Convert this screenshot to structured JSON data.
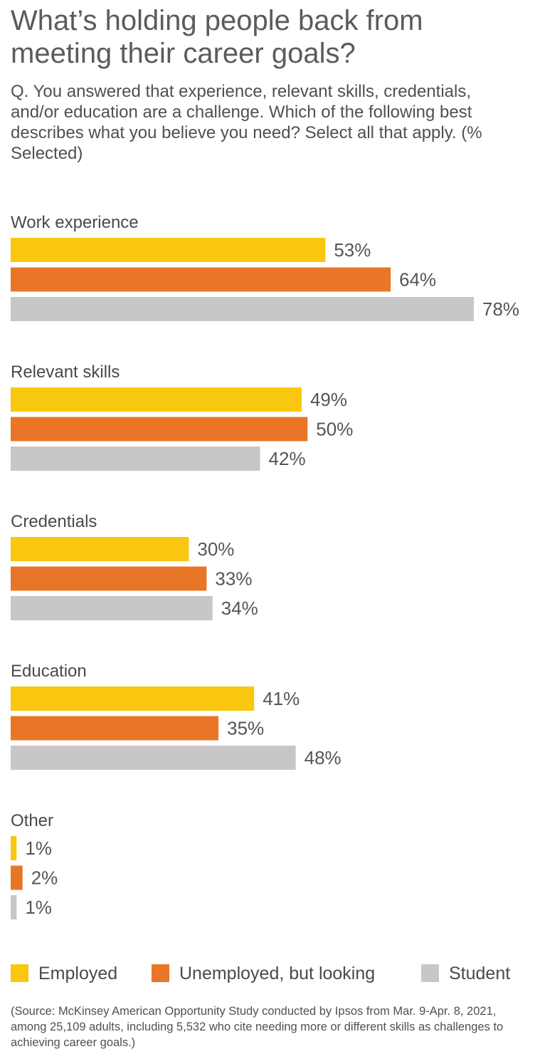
{
  "title": "What’s holding people back from meeting their career goals?",
  "subtitle": "Q. You answered that experience, relevant skills, credentials, and/or education are a challenge. Which of the following best describes what you believe you need? Select all that apply. (% Selected)",
  "source": "(Source: McKinsey American Opportunity Study conducted by Ipsos from Mar. 9-Apr. 8, 2021, among 25,109 adults, including 5,532 who cite needing more or different skills as challenges to achieving career goals.)",
  "colors": {
    "employed": "#f9c70f",
    "unemployed": "#e97626",
    "student": "#c9c6c6"
  },
  "chart_data": {
    "type": "bar",
    "orientation": "horizontal",
    "unit": "%",
    "categories": [
      "Work experience",
      "Relevant skills",
      "Credentials",
      "Education",
      "Other"
    ],
    "series": [
      {
        "name": "Employed",
        "color_key": "employed",
        "values": [
          53,
          49,
          30,
          41,
          1
        ]
      },
      {
        "name": "Unemployed, but looking",
        "color_key": "unemployed",
        "values": [
          64,
          50,
          33,
          35,
          2
        ]
      },
      {
        "name": "Student",
        "color_key": "student",
        "values": [
          78,
          42,
          34,
          48,
          1
        ]
      }
    ],
    "xlim": [
      0,
      78
    ],
    "legend_position": "bottom"
  }
}
